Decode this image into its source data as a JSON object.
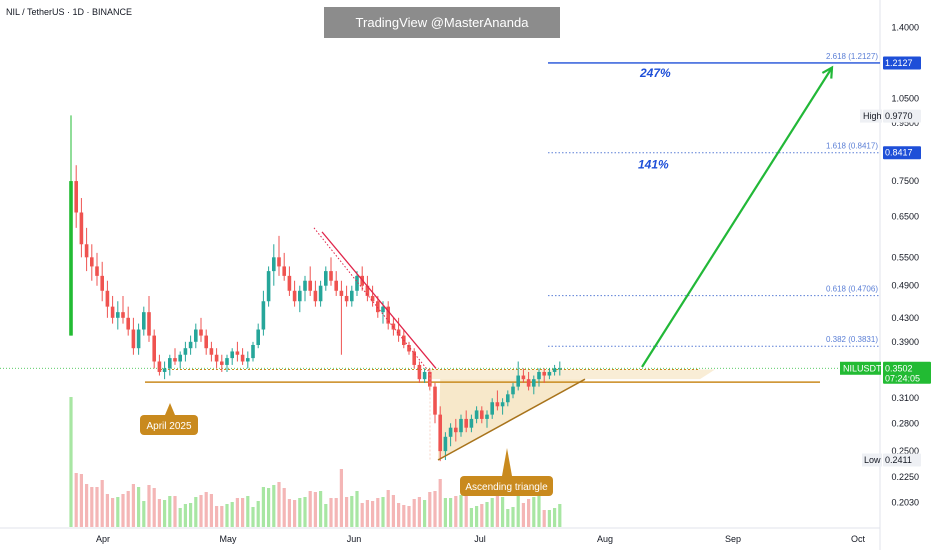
{
  "header": {
    "symbol_line": "NIL / TetherUS · 1D · BINANCE"
  },
  "watermark": {
    "text": "TradingView @MasterAnanda"
  },
  "colors": {
    "up": "#26a69a",
    "down": "#ef5350",
    "bright_up": "#22bb33",
    "volume_up": "#a8e6a3",
    "volume_down": "#f4b6b6",
    "fib_line": "#5b7fd6",
    "fib_target": "#1e4fd8",
    "support": "#c98a1e",
    "triangle_fill": "#f6e6c4",
    "arrow": "#22b838",
    "price_tag": "#22bb33",
    "trendline": "#e0254a"
  },
  "chart_data": {
    "type": "candlestick",
    "xlabel": "",
    "ylabel": "",
    "y_scale": "log",
    "ylim": [
      0.192,
      1.48
    ],
    "y_ticks": [
      "1.4000",
      "1.0500",
      "0.9500",
      "0.7500",
      "0.6500",
      "0.5500",
      "0.4900",
      "0.4300",
      "0.3900",
      "0.3100",
      "0.2800",
      "0.2500",
      "0.2250",
      "0.2030"
    ],
    "x_ticks": [
      "Apr",
      "May",
      "Jun",
      "Jul",
      "Aug",
      "Sep",
      "Oct"
    ],
    "price_levels": [
      {
        "label": "1.2127",
        "value": 1.2127,
        "kind": "fib-target"
      },
      {
        "label": "High",
        "value_label": "0.9770",
        "value": 0.977,
        "kind": "high"
      },
      {
        "label": "0.8417",
        "value": 0.8417,
        "kind": "fib-target"
      },
      {
        "label": "NILUSDT",
        "value_label": "0.3502",
        "countdown": "07:24:05",
        "value": 0.3502,
        "kind": "last-price"
      },
      {
        "label": "Low",
        "value_label": "0.2411",
        "value": 0.2411,
        "kind": "low"
      }
    ],
    "fib_levels": [
      {
        "label": "2.618 (1.2127)",
        "value": 1.2127
      },
      {
        "label": "1.618 (0.8417)",
        "value": 0.8417
      },
      {
        "label": "0.618 (0.4706)",
        "value": 0.4706
      },
      {
        "label": "0.382 (0.3831)",
        "value": 0.3831
      }
    ],
    "targets": [
      {
        "label": "247%",
        "value": 1.2127
      },
      {
        "label": "141%",
        "value": 0.8417
      }
    ],
    "annotations": [
      "April 2025",
      "Ascending triangle"
    ],
    "support_level": 0.331,
    "candles": [
      [
        0.4,
        0.98,
        0.4,
        0.75
      ],
      [
        0.75,
        0.8,
        0.62,
        0.66
      ],
      [
        0.66,
        0.7,
        0.55,
        0.58
      ],
      [
        0.58,
        0.62,
        0.52,
        0.55
      ],
      [
        0.55,
        0.58,
        0.5,
        0.53
      ],
      [
        0.53,
        0.56,
        0.49,
        0.51
      ],
      [
        0.51,
        0.54,
        0.46,
        0.48
      ],
      [
        0.48,
        0.5,
        0.43,
        0.45
      ],
      [
        0.45,
        0.47,
        0.42,
        0.43
      ],
      [
        0.43,
        0.46,
        0.41,
        0.44
      ],
      [
        0.44,
        0.47,
        0.42,
        0.43
      ],
      [
        0.43,
        0.45,
        0.4,
        0.41
      ],
      [
        0.41,
        0.43,
        0.37,
        0.38
      ],
      [
        0.38,
        0.42,
        0.37,
        0.41
      ],
      [
        0.41,
        0.45,
        0.4,
        0.44
      ],
      [
        0.44,
        0.47,
        0.39,
        0.4
      ],
      [
        0.4,
        0.41,
        0.35,
        0.36
      ],
      [
        0.36,
        0.37,
        0.34,
        0.345
      ],
      [
        0.345,
        0.36,
        0.335,
        0.35
      ],
      [
        0.35,
        0.37,
        0.34,
        0.365
      ],
      [
        0.365,
        0.38,
        0.355,
        0.36
      ],
      [
        0.36,
        0.375,
        0.35,
        0.37
      ],
      [
        0.37,
        0.39,
        0.36,
        0.38
      ],
      [
        0.38,
        0.4,
        0.37,
        0.39
      ],
      [
        0.39,
        0.42,
        0.38,
        0.41
      ],
      [
        0.41,
        0.43,
        0.39,
        0.4
      ],
      [
        0.4,
        0.41,
        0.37,
        0.38
      ],
      [
        0.38,
        0.39,
        0.36,
        0.37
      ],
      [
        0.37,
        0.38,
        0.35,
        0.36
      ],
      [
        0.36,
        0.37,
        0.345,
        0.355
      ],
      [
        0.355,
        0.37,
        0.345,
        0.365
      ],
      [
        0.365,
        0.38,
        0.355,
        0.375
      ],
      [
        0.375,
        0.39,
        0.36,
        0.37
      ],
      [
        0.37,
        0.38,
        0.355,
        0.36
      ],
      [
        0.36,
        0.375,
        0.35,
        0.365
      ],
      [
        0.365,
        0.39,
        0.36,
        0.385
      ],
      [
        0.385,
        0.42,
        0.38,
        0.41
      ],
      [
        0.41,
        0.48,
        0.4,
        0.46
      ],
      [
        0.46,
        0.53,
        0.45,
        0.52
      ],
      [
        0.52,
        0.58,
        0.49,
        0.55
      ],
      [
        0.55,
        0.6,
        0.51,
        0.53
      ],
      [
        0.53,
        0.56,
        0.5,
        0.51
      ],
      [
        0.51,
        0.53,
        0.47,
        0.48
      ],
      [
        0.48,
        0.5,
        0.45,
        0.46
      ],
      [
        0.46,
        0.49,
        0.44,
        0.48
      ],
      [
        0.48,
        0.51,
        0.46,
        0.5
      ],
      [
        0.5,
        0.53,
        0.47,
        0.48
      ],
      [
        0.48,
        0.5,
        0.45,
        0.46
      ],
      [
        0.46,
        0.5,
        0.45,
        0.49
      ],
      [
        0.49,
        0.53,
        0.48,
        0.52
      ],
      [
        0.52,
        0.55,
        0.49,
        0.5
      ],
      [
        0.5,
        0.52,
        0.47,
        0.48
      ],
      [
        0.48,
        0.5,
        0.37,
        0.47
      ],
      [
        0.47,
        0.49,
        0.45,
        0.46
      ],
      [
        0.46,
        0.49,
        0.45,
        0.48
      ],
      [
        0.48,
        0.52,
        0.47,
        0.51
      ],
      [
        0.51,
        0.53,
        0.48,
        0.49
      ],
      [
        0.49,
        0.51,
        0.46,
        0.47
      ],
      [
        0.47,
        0.49,
        0.45,
        0.46
      ],
      [
        0.46,
        0.47,
        0.43,
        0.44
      ],
      [
        0.44,
        0.46,
        0.42,
        0.45
      ],
      [
        0.45,
        0.46,
        0.41,
        0.42
      ],
      [
        0.42,
        0.43,
        0.4,
        0.41
      ],
      [
        0.41,
        0.43,
        0.39,
        0.4
      ],
      [
        0.4,
        0.41,
        0.38,
        0.385
      ],
      [
        0.385,
        0.39,
        0.37,
        0.375
      ],
      [
        0.375,
        0.38,
        0.35,
        0.355
      ],
      [
        0.355,
        0.36,
        0.33,
        0.335
      ],
      [
        0.335,
        0.35,
        0.33,
        0.345
      ],
      [
        0.345,
        0.35,
        0.32,
        0.325
      ],
      [
        0.325,
        0.33,
        0.28,
        0.29
      ],
      [
        0.29,
        0.3,
        0.24,
        0.25
      ],
      [
        0.25,
        0.27,
        0.2411,
        0.265
      ],
      [
        0.265,
        0.28,
        0.255,
        0.275
      ],
      [
        0.275,
        0.285,
        0.26,
        0.27
      ],
      [
        0.27,
        0.29,
        0.265,
        0.285
      ],
      [
        0.285,
        0.295,
        0.27,
        0.275
      ],
      [
        0.275,
        0.29,
        0.27,
        0.285
      ],
      [
        0.285,
        0.3,
        0.28,
        0.295
      ],
      [
        0.295,
        0.3,
        0.28,
        0.285
      ],
      [
        0.285,
        0.295,
        0.275,
        0.29
      ],
      [
        0.29,
        0.31,
        0.285,
        0.305
      ],
      [
        0.305,
        0.32,
        0.295,
        0.3
      ],
      [
        0.3,
        0.31,
        0.29,
        0.305
      ],
      [
        0.305,
        0.32,
        0.3,
        0.315
      ],
      [
        0.315,
        0.33,
        0.31,
        0.325
      ],
      [
        0.325,
        0.36,
        0.32,
        0.34
      ],
      [
        0.34,
        0.35,
        0.33,
        0.335
      ],
      [
        0.335,
        0.345,
        0.32,
        0.325
      ],
      [
        0.325,
        0.34,
        0.315,
        0.335
      ],
      [
        0.335,
        0.35,
        0.325,
        0.345
      ],
      [
        0.345,
        0.35,
        0.33,
        0.34
      ],
      [
        0.34,
        0.35,
        0.335,
        0.345
      ],
      [
        0.345,
        0.355,
        0.34,
        0.35
      ],
      [
        0.35,
        0.36,
        0.34,
        0.3502
      ]
    ]
  }
}
